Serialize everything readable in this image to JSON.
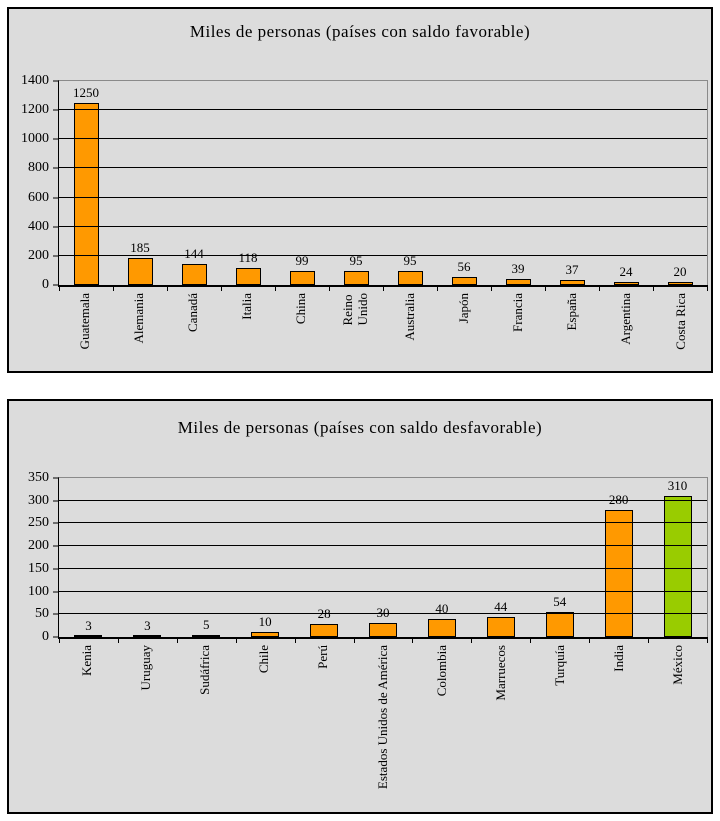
{
  "colors": {
    "bar_orange": "#FF9900",
    "bar_green_highlight": "#99CC00",
    "chart_background": "#DCDCDC",
    "gridline": "#000000",
    "frame_border": "#000000"
  },
  "chart_data": [
    {
      "type": "bar",
      "title": "Miles de personas (países con saldo favorable)",
      "categories": [
        "Guatemala",
        "Alemania",
        "Canadá",
        "Italia",
        "China",
        "Reino\nUnido",
        "Australia",
        "Japón",
        "Francia",
        "España",
        "Argentina",
        "Costa Rica"
      ],
      "values": [
        1250,
        185,
        144,
        118,
        99,
        95,
        95,
        56,
        39,
        37,
        24,
        20
      ],
      "value_labels": [
        "1250",
        "185",
        "144",
        "118",
        "99",
        "95",
        "95",
        "56",
        "39",
        "37",
        "24",
        "20"
      ],
      "bar_colors": [
        "#FF9900",
        "#FF9900",
        "#FF9900",
        "#FF9900",
        "#FF9900",
        "#FF9900",
        "#FF9900",
        "#FF9900",
        "#FF9900",
        "#FF9900",
        "#FF9900",
        "#FF9900"
      ],
      "xlabel": "",
      "ylabel": "",
      "ylim": [
        0,
        1400
      ],
      "ytick_step": 200,
      "ytick_labels": [
        "0",
        "200",
        "400",
        "600",
        "800",
        "1000",
        "1200",
        "1400"
      ],
      "grid": true,
      "legend": false
    },
    {
      "type": "bar",
      "title": "Miles de personas (países con saldo desfavorable)",
      "categories": [
        "Kenia",
        "Uruguay",
        "Sudáfrica",
        "Chile",
        "Perú",
        "Estados Unidos de América",
        "Colombia",
        "Marruecos",
        "Turquía",
        "India",
        "México"
      ],
      "values": [
        3,
        3,
        5,
        10,
        28,
        30,
        40,
        44,
        54,
        280,
        310
      ],
      "value_labels": [
        "3",
        "3",
        "5",
        "10",
        "28",
        "30",
        "40",
        "44",
        "54",
        "280",
        "310"
      ],
      "bar_colors": [
        "#FF9900",
        "#FF9900",
        "#FF9900",
        "#FF9900",
        "#FF9900",
        "#FF9900",
        "#FF9900",
        "#FF9900",
        "#FF9900",
        "#FF9900",
        "#99CC00"
      ],
      "xlabel": "",
      "ylabel": "",
      "ylim": [
        0,
        350
      ],
      "ytick_step": 50,
      "ytick_labels": [
        "0",
        "50",
        "100",
        "150",
        "200",
        "250",
        "300",
        "350"
      ],
      "grid": true,
      "legend": false
    }
  ]
}
